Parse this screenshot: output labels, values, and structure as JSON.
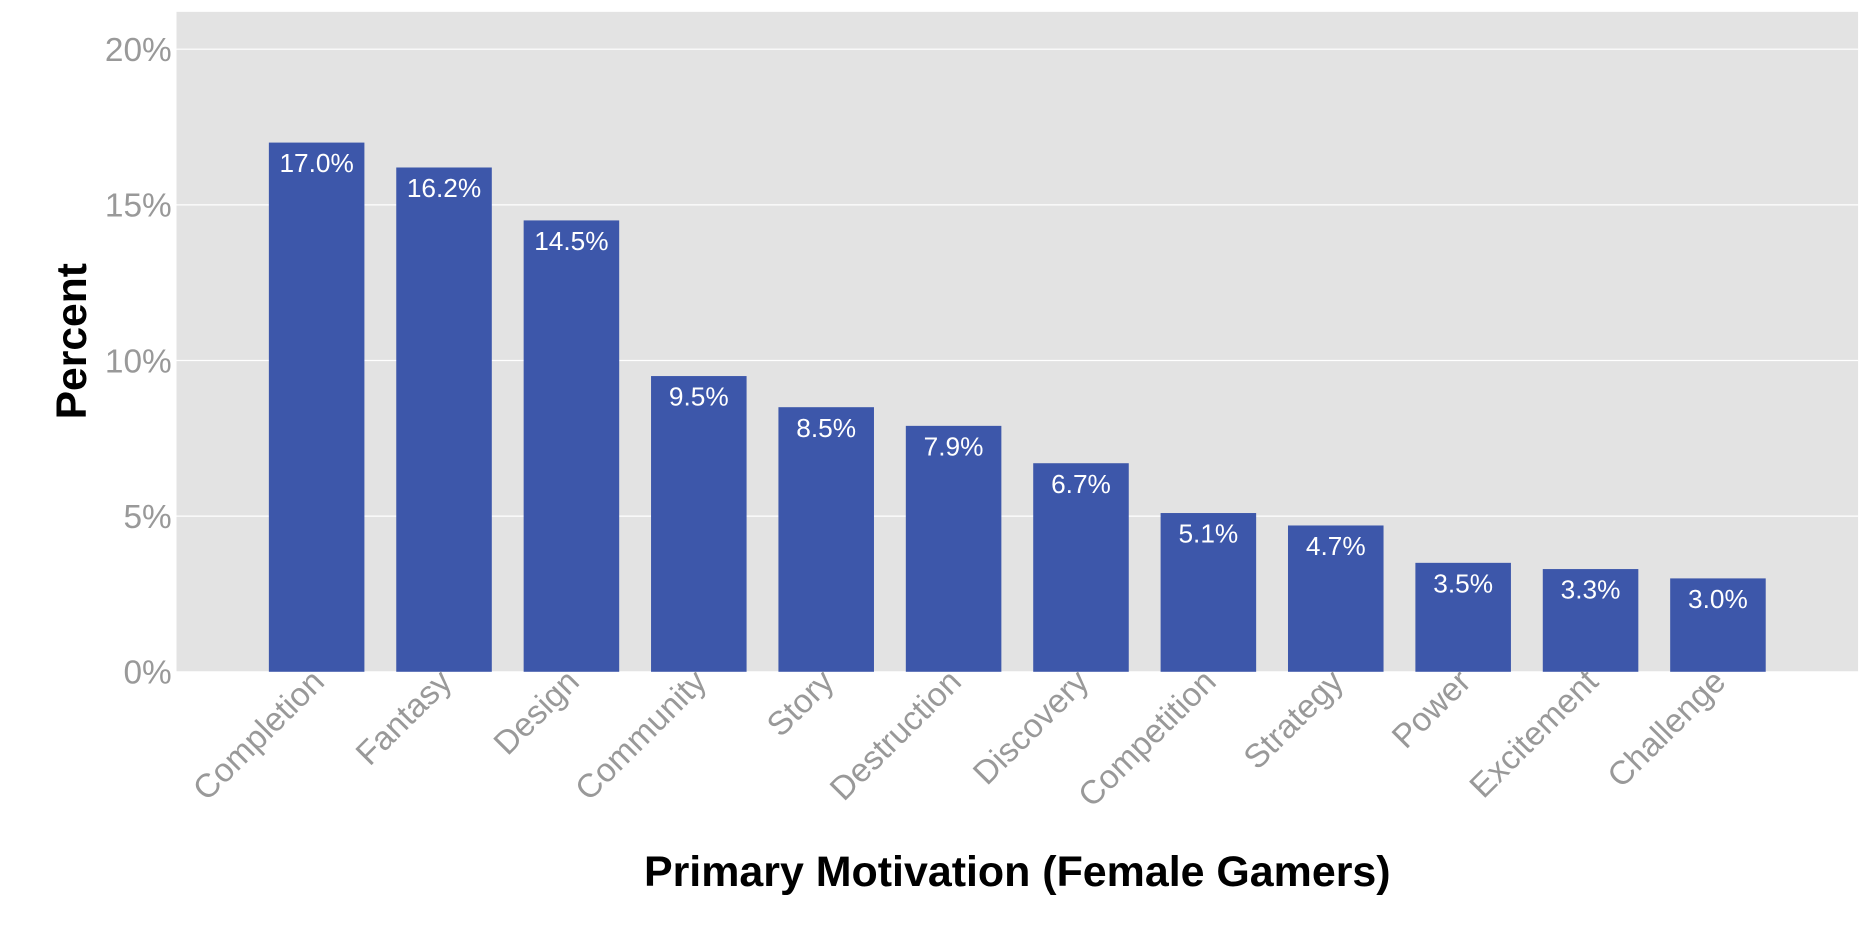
{
  "chart_data": {
    "type": "bar",
    "title": "",
    "xlabel": "Primary Motivation (Female Gamers)",
    "ylabel": "Percent",
    "categories": [
      "Completion",
      "Fantasy",
      "Design",
      "Community",
      "Story",
      "Destruction",
      "Discovery",
      "Competition",
      "Strategy",
      "Power",
      "Excitement",
      "Challenge"
    ],
    "values": [
      17.0,
      16.2,
      14.5,
      9.5,
      8.5,
      7.9,
      6.7,
      5.1,
      4.7,
      3.5,
      3.3,
      3.0
    ],
    "data_labels": [
      "17.0%",
      "16.2%",
      "14.5%",
      "9.5%",
      "8.5%",
      "7.9%",
      "6.7%",
      "5.1%",
      "4.7%",
      "3.5%",
      "3.3%",
      "3.0%"
    ],
    "ylim": [
      0,
      21.2
    ],
    "yticks": [
      0,
      5,
      10,
      15,
      20
    ],
    "ytick_labels": [
      "0%",
      "5%",
      "10%",
      "15%",
      "20%"
    ],
    "grid": true,
    "colors": {
      "bar": "#3d57aa",
      "panel": "#e3e3e3",
      "grid": "#ffffff",
      "tick_text": "#999999",
      "data_label": "#ffffff"
    }
  }
}
